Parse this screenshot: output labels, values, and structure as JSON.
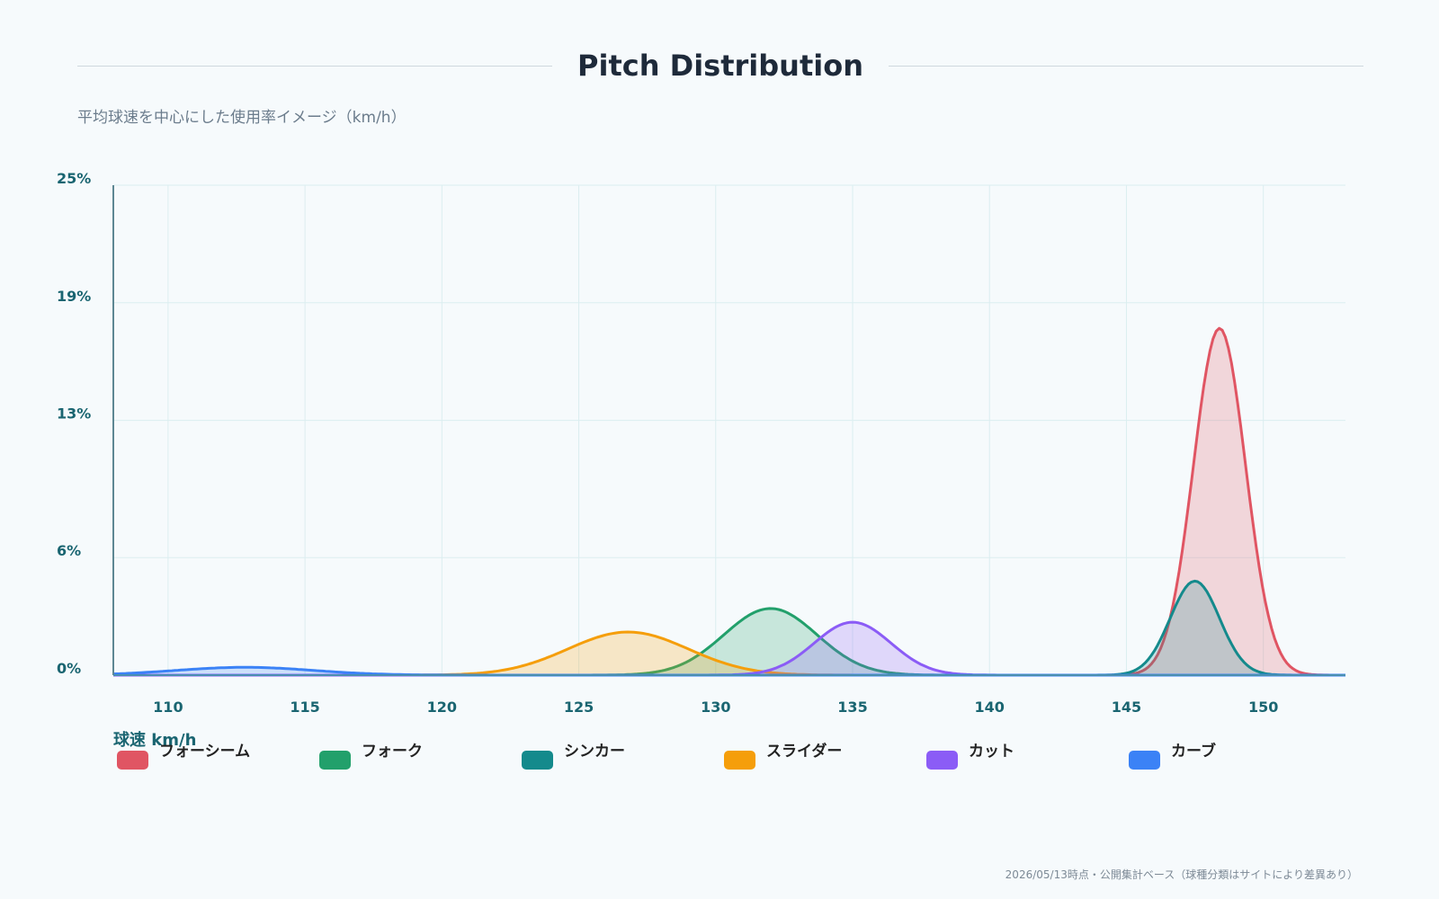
{
  "header": {
    "title": "Pitch Distribution",
    "subtitle": "平均球速を中心にした使用率イメージ（km/h）"
  },
  "footer": {
    "note": "2026/05/13時点・公開集計ベース（球種分類はサイトにより差異あり）"
  },
  "colors": {
    "background": "#f6fafc",
    "axis_text": "#1a6571",
    "grid": "#dbeef0"
  },
  "chart_data": {
    "type": "area",
    "title": "Pitch Distribution",
    "subtitle": "平均球速を中心にした使用率イメージ（km/h）",
    "xlabel": "球速 km/h",
    "ylabel": "",
    "xlim": [
      108,
      153
    ],
    "ylim": [
      0,
      25
    ],
    "x_ticks": [
      110,
      115,
      120,
      125,
      130,
      135,
      140,
      145,
      150
    ],
    "y_ticks": [
      0,
      6,
      13,
      19,
      25
    ],
    "y_tick_labels": [
      "0%",
      "6%",
      "13%",
      "19%",
      "25%"
    ],
    "grid": true,
    "legend_position": "bottom",
    "series": [
      {
        "name": "フォーシーム",
        "color": "#e05563",
        "mean": 148.4,
        "sd": 0.95,
        "peak": 17.7
      },
      {
        "name": "フォーク",
        "color": "#22a06b",
        "mean": 132.0,
        "sd": 1.7,
        "peak": 3.4
      },
      {
        "name": "シンカー",
        "color": "#148a8c",
        "mean": 147.5,
        "sd": 0.9,
        "peak": 4.8
      },
      {
        "name": "スライダー",
        "color": "#f59e0b",
        "mean": 126.8,
        "sd": 2.2,
        "peak": 2.2
      },
      {
        "name": "カット",
        "color": "#8b5cf6",
        "mean": 135.0,
        "sd": 1.4,
        "peak": 2.7
      },
      {
        "name": "カーブ",
        "color": "#3b82f6",
        "mean": 112.8,
        "sd": 2.5,
        "peak": 0.4
      }
    ]
  }
}
